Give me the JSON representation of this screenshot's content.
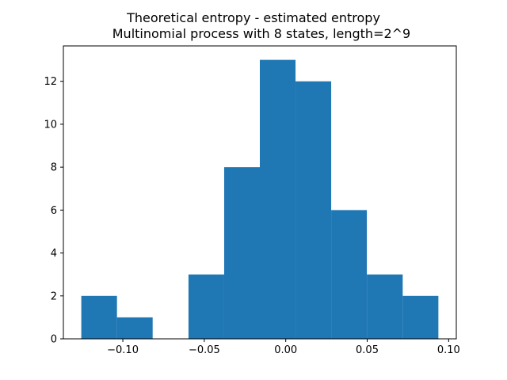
{
  "chart_data": {
    "type": "bar",
    "title_line1": "Theoretical entropy - estimated entropy",
    "title_line2": "Multinomial process with 8 states, length=2^9",
    "xlabel": "",
    "ylabel": "",
    "bins": [
      {
        "x0": -0.1255,
        "x1": -0.1036,
        "value": 2
      },
      {
        "x0": -0.1036,
        "x1": -0.0817,
        "value": 1
      },
      {
        "x0": -0.0817,
        "x1": -0.0597,
        "value": 0
      },
      {
        "x0": -0.0597,
        "x1": -0.0378,
        "value": 3
      },
      {
        "x0": -0.0378,
        "x1": -0.0159,
        "value": 8
      },
      {
        "x0": -0.0159,
        "x1": 0.006,
        "value": 13
      },
      {
        "x0": 0.006,
        "x1": 0.0279,
        "value": 12
      },
      {
        "x0": 0.0279,
        "x1": 0.0498,
        "value": 6
      },
      {
        "x0": 0.0498,
        "x1": 0.0718,
        "value": 3
      },
      {
        "x0": 0.0718,
        "x1": 0.0937,
        "value": 2
      }
    ],
    "xlim": [
      -0.1365,
      0.1047
    ],
    "ylim": [
      0,
      13.65
    ],
    "xticks": [
      {
        "value": -0.1,
        "label": "−0.10"
      },
      {
        "value": -0.05,
        "label": "−0.05"
      },
      {
        "value": 0.0,
        "label": "0.00"
      },
      {
        "value": 0.05,
        "label": "0.05"
      },
      {
        "value": 0.1,
        "label": "0.10"
      }
    ],
    "yticks": [
      {
        "value": 0,
        "label": "0"
      },
      {
        "value": 2,
        "label": "2"
      },
      {
        "value": 4,
        "label": "4"
      },
      {
        "value": 6,
        "label": "6"
      },
      {
        "value": 8,
        "label": "8"
      },
      {
        "value": 10,
        "label": "10"
      },
      {
        "value": 12,
        "label": "12"
      }
    ],
    "grid": false,
    "legend": "none",
    "bar_color": "#1f77b4"
  }
}
